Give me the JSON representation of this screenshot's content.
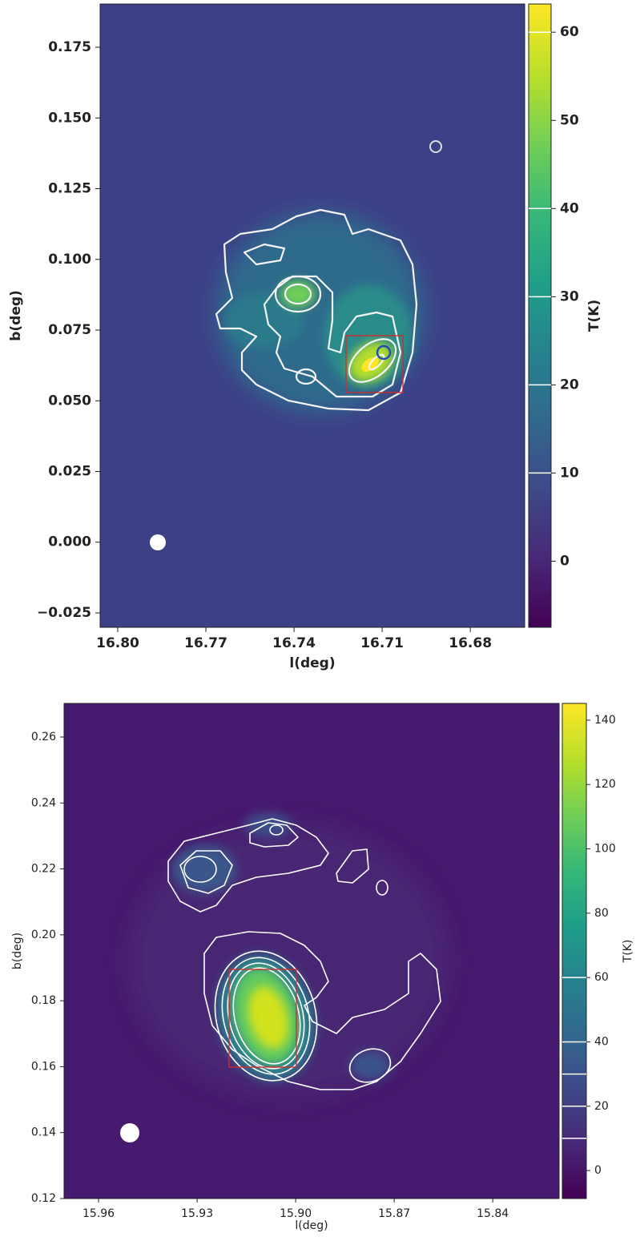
{
  "chart_data": [
    {
      "type": "heatmap",
      "xlabel": "l(deg)",
      "ylabel": "b(deg)",
      "xlim": [
        16.806,
        16.6615
      ],
      "ylim": [
        -0.0301,
        0.1903
      ],
      "xticks": [
        {
          "value": 16.8,
          "label": "16.80"
        },
        16.77,
        16.74,
        16.71,
        16.68
      ],
      "yticks": [
        {
          "value": -0.025,
          "label": "−0.025"
        },
        {
          "value": 0,
          "label": "0.000"
        },
        0.025,
        {
          "value": 0.05,
          "label": "0.050"
        },
        0.075,
        {
          "value": 0.1,
          "label": "0.100"
        },
        0.125,
        {
          "value": 0.15,
          "label": "0.150"
        },
        0.175
      ],
      "colorbar": {
        "label": "T(K)",
        "colormap": "viridis",
        "lim": [
          -7.5,
          63.2
        ],
        "ticks": [
          0,
          10,
          20,
          30,
          40,
          50,
          60
        ],
        "contour_levels": [
          10,
          20,
          30,
          40,
          60
        ]
      }
    },
    {
      "type": "heatmap",
      "xlabel": "l(deg)",
      "ylabel": "b(deg)",
      "xlim": [
        15.9705,
        15.8198
      ],
      "ylim": [
        0.12,
        0.2702
      ],
      "xticks": [
        15.96,
        15.93,
        {
          "value": 15.9,
          "label": "15.90"
        },
        15.87,
        15.84
      ],
      "yticks": [
        0.12,
        0.14,
        0.16,
        0.18,
        {
          "value": 0.2,
          "label": "0.20"
        },
        0.22,
        0.24,
        0.26
      ],
      "colorbar": {
        "label": "T(K)",
        "colormap": "viridis",
        "lim": [
          -8.7,
          145.2
        ],
        "ticks": [
          0,
          20,
          40,
          60,
          80,
          100,
          120,
          140
        ],
        "contour_levels": [
          10,
          20,
          30,
          40,
          60
        ]
      }
    }
  ]
}
